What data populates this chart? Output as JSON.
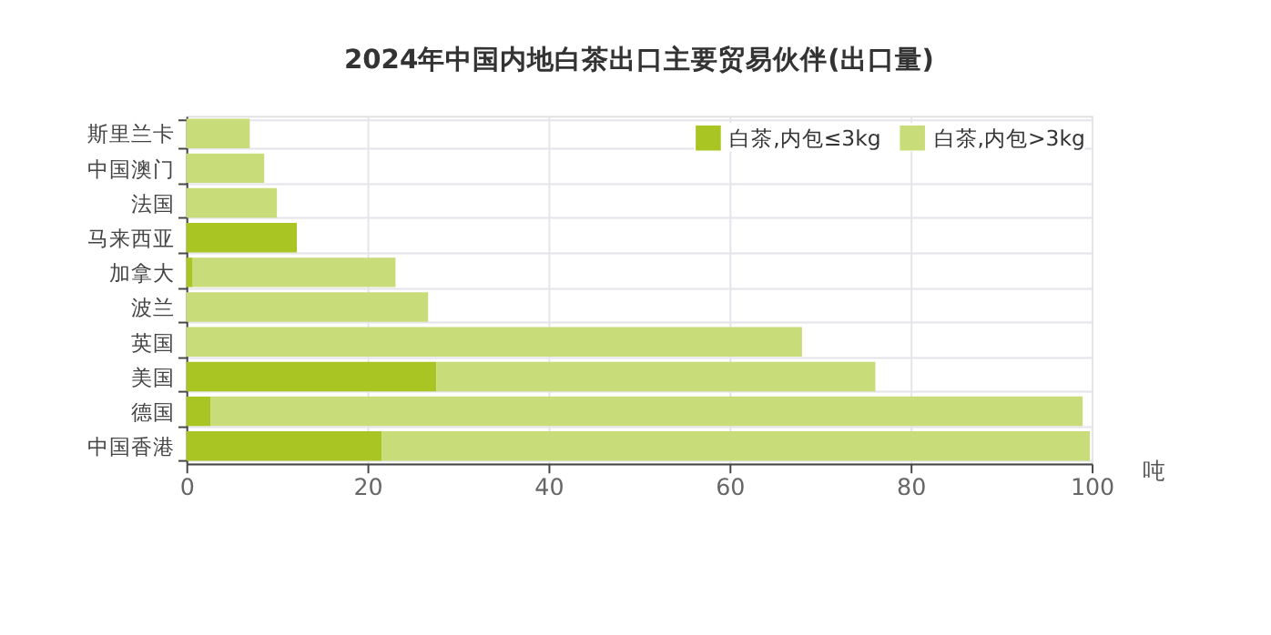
{
  "chart_data": {
    "type": "bar",
    "orientation": "horizontal",
    "stacked": true,
    "title": "2024年中国内地白茶出口主要贸易伙伴(出口量)",
    "xlabel": "吨",
    "categories": [
      "斯里兰卡",
      "中国澳门",
      "法国",
      "马来西亚",
      "加拿大",
      "波兰",
      "英国",
      "美国",
      "德国",
      "中国香港"
    ],
    "series": [
      {
        "name": "白茶,内包≤3kg",
        "color": "#a8c523",
        "values": [
          0,
          0,
          0,
          12.2,
          0.7,
          0,
          0,
          27.6,
          2.7,
          21.6
        ]
      },
      {
        "name": "白茶,内包>3kg",
        "color": "#c8dc7a",
        "values": [
          7.0,
          8.6,
          10.0,
          0,
          22.4,
          26.7,
          68.0,
          48.5,
          96.3,
          78.2
        ]
      }
    ],
    "xlim": [
      0,
      100
    ],
    "xticks": [
      0,
      20,
      40,
      60,
      80,
      100
    ],
    "grid": true,
    "legend": "top right"
  }
}
